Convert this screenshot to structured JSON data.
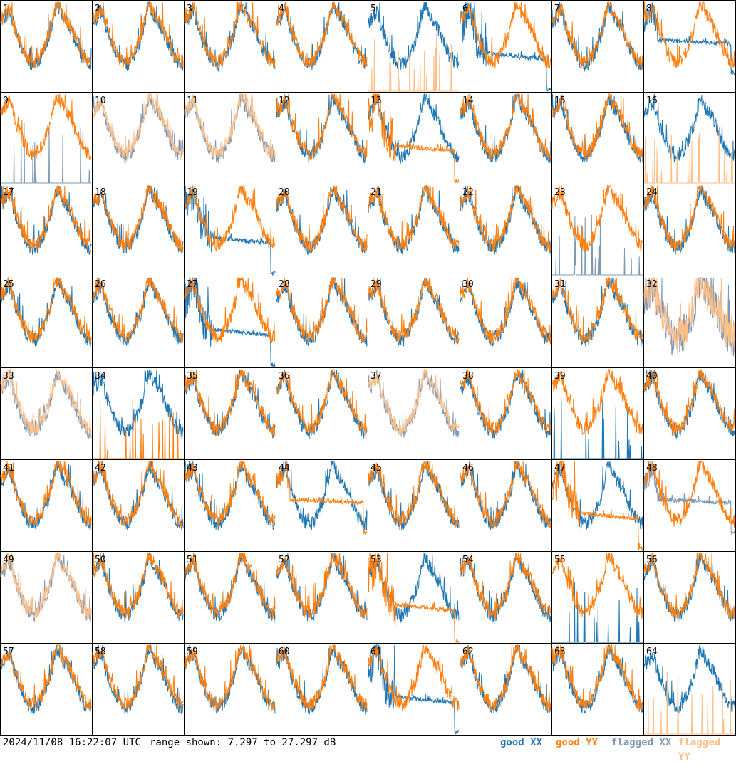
{
  "footer": {
    "timestamp": "2024/11/08 16:22:07 UTC",
    "range_text": "range shown: 7.297 to 27.297 dB"
  },
  "legend": [
    {
      "key": "good_xx",
      "label": "good XX",
      "color": "#1f77b4"
    },
    {
      "key": "good_yy",
      "label": "good YY",
      "color": "#ff7f0e"
    },
    {
      "key": "flagged_xx",
      "label": "flagged XX",
      "color": "#7f98b4"
    },
    {
      "key": "flagged_yy",
      "label": "flagged YY",
      "color": "#ffbf87"
    }
  ],
  "chart_data": {
    "type": "line",
    "layout": "small-multiples 8x8",
    "ylim": [
      7.297,
      27.297
    ],
    "yunit": "dB",
    "panels": [
      {
        "id": 1,
        "xx": "good",
        "yy": "good",
        "shape": "normal"
      },
      {
        "id": 2,
        "xx": "good",
        "yy": "good",
        "shape": "normal"
      },
      {
        "id": 3,
        "xx": "good",
        "yy": "good",
        "shape": "normal"
      },
      {
        "id": 4,
        "xx": "good",
        "yy": "good",
        "shape": "normal"
      },
      {
        "id": 5,
        "xx": "good",
        "yy": "flagged",
        "shape": "yy-dropout"
      },
      {
        "id": 6,
        "xx": "good",
        "yy": "good",
        "shape": "xx-low"
      },
      {
        "id": 7,
        "xx": "good",
        "yy": "good",
        "shape": "normal"
      },
      {
        "id": 8,
        "xx": "good",
        "yy": "good",
        "shape": "xx-flat"
      },
      {
        "id": 9,
        "xx": "flagged",
        "yy": "good",
        "shape": "xx-dropout"
      },
      {
        "id": 10,
        "xx": "flagged",
        "yy": "flagged",
        "shape": "normal"
      },
      {
        "id": 11,
        "xx": "flagged",
        "yy": "flagged",
        "shape": "normal"
      },
      {
        "id": 12,
        "xx": "good",
        "yy": "good",
        "shape": "normal"
      },
      {
        "id": 13,
        "xx": "good",
        "yy": "good",
        "shape": "yy-low"
      },
      {
        "id": 14,
        "xx": "good",
        "yy": "good",
        "shape": "normal"
      },
      {
        "id": 15,
        "xx": "good",
        "yy": "good",
        "shape": "normal"
      },
      {
        "id": 16,
        "xx": "good",
        "yy": "flagged",
        "shape": "yy-dropout"
      },
      {
        "id": 17,
        "xx": "good",
        "yy": "good",
        "shape": "normal"
      },
      {
        "id": 18,
        "xx": "good",
        "yy": "good",
        "shape": "normal"
      },
      {
        "id": 19,
        "xx": "good",
        "yy": "good",
        "shape": "xx-low"
      },
      {
        "id": 20,
        "xx": "good",
        "yy": "good",
        "shape": "normal"
      },
      {
        "id": 21,
        "xx": "good",
        "yy": "good",
        "shape": "normal"
      },
      {
        "id": 22,
        "xx": "good",
        "yy": "good",
        "shape": "normal"
      },
      {
        "id": 23,
        "xx": "flagged",
        "yy": "good",
        "shape": "xx-dropout"
      },
      {
        "id": 24,
        "xx": "good",
        "yy": "good",
        "shape": "normal"
      },
      {
        "id": 25,
        "xx": "good",
        "yy": "good",
        "shape": "normal"
      },
      {
        "id": 26,
        "xx": "good",
        "yy": "good",
        "shape": "normal"
      },
      {
        "id": 27,
        "xx": "good",
        "yy": "good",
        "shape": "xx-low"
      },
      {
        "id": 28,
        "xx": "good",
        "yy": "good",
        "shape": "normal"
      },
      {
        "id": 29,
        "xx": "good",
        "yy": "good",
        "shape": "normal"
      },
      {
        "id": 30,
        "xx": "good",
        "yy": "good",
        "shape": "normal"
      },
      {
        "id": 31,
        "xx": "good",
        "yy": "good",
        "shape": "normal"
      },
      {
        "id": 32,
        "xx": "flagged",
        "yy": "flagged",
        "shape": "noisy"
      },
      {
        "id": 33,
        "xx": "flagged",
        "yy": "flagged",
        "shape": "normal"
      },
      {
        "id": 34,
        "xx": "good",
        "yy": "good",
        "shape": "yy-dropout"
      },
      {
        "id": 35,
        "xx": "good",
        "yy": "good",
        "shape": "normal"
      },
      {
        "id": 36,
        "xx": "good",
        "yy": "good",
        "shape": "normal"
      },
      {
        "id": 37,
        "xx": "flagged",
        "yy": "flagged",
        "shape": "normal"
      },
      {
        "id": 38,
        "xx": "good",
        "yy": "good",
        "shape": "normal"
      },
      {
        "id": 39,
        "xx": "good",
        "yy": "good",
        "shape": "xx-dropout"
      },
      {
        "id": 40,
        "xx": "good",
        "yy": "good",
        "shape": "normal"
      },
      {
        "id": 41,
        "xx": "good",
        "yy": "good",
        "shape": "normal"
      },
      {
        "id": 42,
        "xx": "good",
        "yy": "good",
        "shape": "normal"
      },
      {
        "id": 43,
        "xx": "good",
        "yy": "good",
        "shape": "normal"
      },
      {
        "id": 44,
        "xx": "good",
        "yy": "good",
        "shape": "yy-flat"
      },
      {
        "id": 45,
        "xx": "good",
        "yy": "good",
        "shape": "normal"
      },
      {
        "id": 46,
        "xx": "good",
        "yy": "good",
        "shape": "normal"
      },
      {
        "id": 47,
        "xx": "good",
        "yy": "good",
        "shape": "yy-low"
      },
      {
        "id": 48,
        "xx": "flagged",
        "yy": "good",
        "shape": "xx-flat"
      },
      {
        "id": 49,
        "xx": "flagged",
        "yy": "flagged",
        "shape": "normal"
      },
      {
        "id": 50,
        "xx": "good",
        "yy": "good",
        "shape": "normal"
      },
      {
        "id": 51,
        "xx": "good",
        "yy": "good",
        "shape": "normal"
      },
      {
        "id": 52,
        "xx": "good",
        "yy": "good",
        "shape": "normal"
      },
      {
        "id": 53,
        "xx": "good",
        "yy": "good",
        "shape": "yy-low"
      },
      {
        "id": 54,
        "xx": "good",
        "yy": "good",
        "shape": "normal"
      },
      {
        "id": 55,
        "xx": "good",
        "yy": "good",
        "shape": "xx-dropout"
      },
      {
        "id": 56,
        "xx": "good",
        "yy": "good",
        "shape": "normal"
      },
      {
        "id": 57,
        "xx": "good",
        "yy": "good",
        "shape": "normal"
      },
      {
        "id": 58,
        "xx": "good",
        "yy": "good",
        "shape": "normal"
      },
      {
        "id": 59,
        "xx": "good",
        "yy": "good",
        "shape": "normal"
      },
      {
        "id": 60,
        "xx": "good",
        "yy": "good",
        "shape": "normal"
      },
      {
        "id": 61,
        "xx": "good",
        "yy": "good",
        "shape": "xx-low"
      },
      {
        "id": 62,
        "xx": "good",
        "yy": "good",
        "shape": "normal"
      },
      {
        "id": 63,
        "xx": "good",
        "yy": "good",
        "shape": "normal"
      },
      {
        "id": 64,
        "xx": "good",
        "yy": "flagged",
        "shape": "yy-dropout"
      }
    ]
  }
}
